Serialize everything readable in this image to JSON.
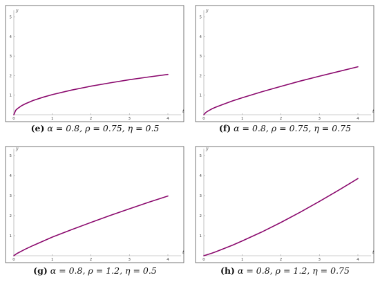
{
  "chart_data": [
    {
      "type": "line",
      "label": "(e)",
      "caption": "α = 0.8, ρ = 0.75, η = 0.5",
      "xlabel": "t",
      "ylabel": "y",
      "xlim": [
        0,
        4.2
      ],
      "ylim": [
        0,
        5.2
      ],
      "xticks": [
        0,
        1,
        2,
        3,
        4
      ],
      "yticks": [
        1,
        2,
        3,
        4,
        5
      ],
      "x": [
        0,
        0.05,
        0.1,
        0.2,
        0.3,
        0.5,
        0.75,
        1,
        1.5,
        2,
        2.5,
        3,
        3.5,
        4
      ],
      "series": [
        {
          "values": [
            0,
            0.23,
            0.32,
            0.46,
            0.56,
            0.73,
            0.89,
            1.03,
            1.26,
            1.46,
            1.63,
            1.79,
            1.93,
            2.06
          ]
        }
      ],
      "color": "#8b0a6e"
    },
    {
      "type": "line",
      "label": "(f)",
      "caption": "α = 0.8, ρ = 0.75, η = 0.75",
      "xlabel": "t",
      "ylabel": "y",
      "xlim": [
        0,
        4.2
      ],
      "ylim": [
        0,
        5.2
      ],
      "xticks": [
        0,
        1,
        2,
        3,
        4
      ],
      "yticks": [
        1,
        2,
        3,
        4,
        5
      ],
      "x": [
        0,
        0.05,
        0.1,
        0.2,
        0.3,
        0.5,
        0.75,
        1,
        1.5,
        2,
        2.5,
        3,
        3.5,
        4
      ],
      "series": [
        {
          "values": [
            0,
            0.11,
            0.18,
            0.29,
            0.38,
            0.53,
            0.71,
            0.87,
            1.17,
            1.45,
            1.72,
            1.97,
            2.21,
            2.45
          ]
        }
      ],
      "color": "#8b0a6e"
    },
    {
      "type": "line",
      "label": "(g)",
      "caption": "α = 0.8, ρ = 1.2, η = 0.5",
      "xlabel": "t",
      "ylabel": "y",
      "xlim": [
        0,
        4.2
      ],
      "ylim": [
        0,
        5.2
      ],
      "xticks": [
        0,
        1,
        2,
        3,
        4
      ],
      "yticks": [
        1,
        2,
        3,
        4,
        5
      ],
      "x": [
        0,
        0.05,
        0.1,
        0.2,
        0.3,
        0.5,
        0.75,
        1,
        1.5,
        2,
        2.5,
        3,
        3.5,
        4
      ],
      "series": [
        {
          "values": [
            0,
            0.07,
            0.13,
            0.23,
            0.33,
            0.51,
            0.72,
            0.93,
            1.3,
            1.66,
            2.01,
            2.34,
            2.67,
            2.98
          ]
        }
      ],
      "color": "#8b0a6e"
    },
    {
      "type": "line",
      "label": "(h)",
      "caption": "α = 0.8, ρ = 1.2, η = 0.75",
      "xlabel": "t",
      "ylabel": "y",
      "xlim": [
        0,
        4.2
      ],
      "ylim": [
        0,
        5.2
      ],
      "xticks": [
        0,
        1,
        2,
        3,
        4
      ],
      "yticks": [
        1,
        2,
        3,
        4,
        5
      ],
      "x": [
        0,
        0.05,
        0.1,
        0.2,
        0.3,
        0.5,
        0.75,
        1,
        1.5,
        2,
        2.5,
        3,
        3.5,
        4
      ],
      "series": [
        {
          "values": [
            0,
            0.03,
            0.06,
            0.12,
            0.19,
            0.34,
            0.53,
            0.74,
            1.18,
            1.66,
            2.17,
            2.71,
            3.27,
            3.85
          ]
        }
      ],
      "color": "#8b0a6e"
    }
  ]
}
